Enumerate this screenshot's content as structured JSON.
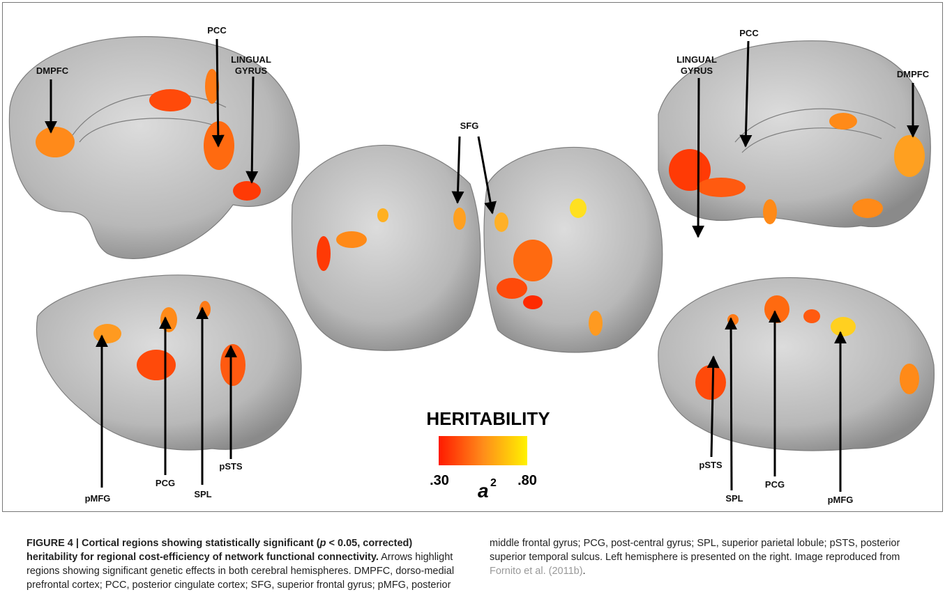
{
  "figure": {
    "labels": [
      {
        "lines": [
          "DMPFC"
        ]
      },
      {
        "lines": [
          "PCC"
        ]
      },
      {
        "lines": [
          "LINGUAL",
          "GYRUS"
        ]
      },
      {
        "lines": [
          "SFG"
        ]
      },
      {
        "lines": [
          "LINGUAL",
          "GYRUS"
        ]
      },
      {
        "lines": [
          "PCC"
        ]
      },
      {
        "lines": [
          "DMPFC"
        ]
      },
      {
        "lines": [
          "pMFG"
        ]
      },
      {
        "lines": [
          "PCG"
        ]
      },
      {
        "lines": [
          "SPL"
        ]
      },
      {
        "lines": [
          "pSTS"
        ]
      },
      {
        "lines": [
          "pSTS"
        ]
      },
      {
        "lines": [
          "SPL"
        ]
      },
      {
        "lines": [
          "PCG"
        ]
      },
      {
        "lines": [
          "pMFG"
        ]
      }
    ],
    "legend": {
      "title": "HERITABILITY",
      "min": ".30",
      "max": ".80",
      "symbol": "a",
      "superscript": "2"
    }
  },
  "caption": {
    "figure_label": "FIGURE 4 |",
    "title_before": " Cortical regions showing statistically significant (",
    "title_italic": "p",
    "title_after": " < 0.05, corrected) heritability for regional cost-efficiency of network functional connectivity.",
    "body": " Arrows highlight regions showing significant genetic effects in both cerebral hemispheres. DMPFC, dorso-medial prefrontal cortex; PCC, posterior cingulate cortex; SFG, superior frontal gyrus; pMFG, posterior middle frontal gyrus; PCG, post-central gyrus; SPL, superior parietal lobule; pSTS, posterior superior temporal sulcus. Left hemisphere is presented on the right. Image reproduced from ",
    "link": "Fornito et al. (2011b)",
    "end": "."
  }
}
